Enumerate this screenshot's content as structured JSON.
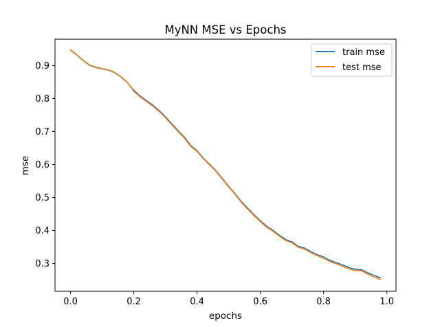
{
  "chart_data": {
    "type": "line",
    "title": "MyNN MSE vs Epochs",
    "xlabel": "epochs",
    "ylabel": "mse",
    "xlim": [
      -0.049,
      1.029
    ],
    "ylim": [
      0.216,
      0.98
    ],
    "xticks": [
      0.0,
      0.2,
      0.4,
      0.6,
      0.8,
      1.0
    ],
    "xtick_labels": [
      "0.0",
      "0.2",
      "0.4",
      "0.6",
      "0.8",
      "1.0"
    ],
    "yticks": [
      0.3,
      0.4,
      0.5,
      0.6,
      0.7,
      0.8,
      0.9
    ],
    "ytick_labels": [
      "0.3",
      "0.4",
      "0.5",
      "0.6",
      "0.7",
      "0.8",
      "0.9"
    ],
    "grid": false,
    "legend_position": "top-right",
    "series": [
      {
        "name": "train mse",
        "color": "#1f77b4",
        "x": [
          0.0,
          0.02,
          0.04,
          0.06,
          0.08,
          0.1,
          0.12,
          0.14,
          0.16,
          0.18,
          0.2,
          0.22,
          0.24,
          0.26,
          0.28,
          0.3,
          0.32,
          0.34,
          0.36,
          0.38,
          0.4,
          0.42,
          0.44,
          0.46,
          0.48,
          0.5,
          0.52,
          0.54,
          0.56,
          0.58,
          0.6,
          0.62,
          0.64,
          0.66,
          0.68,
          0.7,
          0.72,
          0.74,
          0.76,
          0.78,
          0.8,
          0.82,
          0.84,
          0.86,
          0.88,
          0.9,
          0.92,
          0.94,
          0.96,
          0.98
        ],
        "y": [
          0.947,
          0.932,
          0.915,
          0.901,
          0.894,
          0.89,
          0.886,
          0.878,
          0.865,
          0.848,
          0.825,
          0.808,
          0.794,
          0.78,
          0.764,
          0.745,
          0.724,
          0.703,
          0.683,
          0.658,
          0.642,
          0.619,
          0.601,
          0.581,
          0.558,
          0.534,
          0.512,
          0.488,
          0.468,
          0.448,
          0.43,
          0.413,
          0.401,
          0.386,
          0.373,
          0.366,
          0.352,
          0.347,
          0.336,
          0.327,
          0.32,
          0.31,
          0.303,
          0.296,
          0.288,
          0.283,
          0.281,
          0.272,
          0.264,
          0.257
        ]
      },
      {
        "name": "test mse",
        "color": "#ff7f0e",
        "x": [
          0.0,
          0.02,
          0.04,
          0.06,
          0.08,
          0.1,
          0.12,
          0.14,
          0.16,
          0.18,
          0.2,
          0.22,
          0.24,
          0.26,
          0.28,
          0.3,
          0.32,
          0.34,
          0.36,
          0.38,
          0.4,
          0.42,
          0.44,
          0.46,
          0.48,
          0.5,
          0.52,
          0.54,
          0.56,
          0.58,
          0.6,
          0.62,
          0.64,
          0.66,
          0.68,
          0.7,
          0.72,
          0.74,
          0.76,
          0.78,
          0.8,
          0.82,
          0.84,
          0.86,
          0.88,
          0.9,
          0.92,
          0.94,
          0.96,
          0.98
        ],
        "y": [
          0.948,
          0.933,
          0.916,
          0.902,
          0.895,
          0.891,
          0.887,
          0.879,
          0.866,
          0.849,
          0.822,
          0.805,
          0.791,
          0.777,
          0.761,
          0.742,
          0.721,
          0.7,
          0.68,
          0.655,
          0.64,
          0.617,
          0.599,
          0.579,
          0.556,
          0.532,
          0.51,
          0.485,
          0.465,
          0.445,
          0.427,
          0.41,
          0.398,
          0.383,
          0.37,
          0.363,
          0.349,
          0.344,
          0.333,
          0.324,
          0.316,
          0.306,
          0.299,
          0.292,
          0.284,
          0.279,
          0.278,
          0.268,
          0.259,
          0.252
        ]
      }
    ]
  }
}
